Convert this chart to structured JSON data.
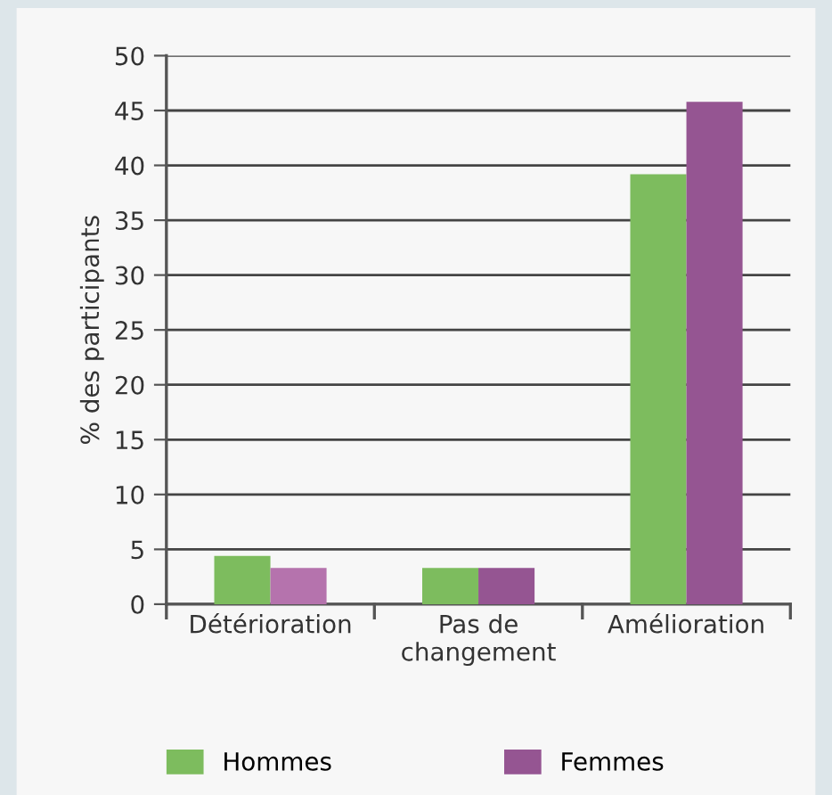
{
  "chart_data": {
    "type": "bar",
    "ylabel": "% des participants",
    "categories": [
      "Détérioration",
      "Pas de\nchangement",
      "Amélioration"
    ],
    "series": [
      {
        "name": "Hommes",
        "color": "#7dbc5e",
        "values": [
          4.4,
          3.3,
          39.2
        ]
      },
      {
        "name": "Femmes",
        "color": "#955592",
        "colors": [
          "#b573ad",
          "#955592",
          "#955592"
        ],
        "values": [
          3.3,
          3.3,
          45.8
        ]
      }
    ],
    "ylim": [
      0,
      50
    ],
    "yticks": [
      0,
      5,
      10,
      15,
      20,
      25,
      30,
      35,
      40,
      45,
      50
    ],
    "grid": "y",
    "legend": "bottom"
  }
}
